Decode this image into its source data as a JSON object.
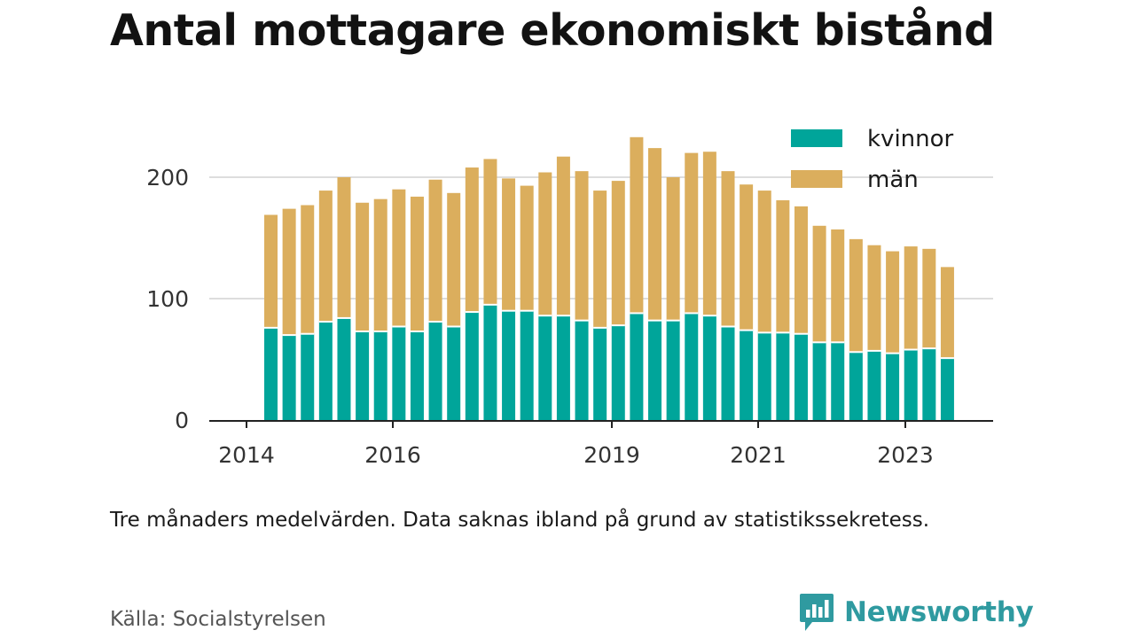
{
  "title": "Antal mottagare ekonomiskt bistånd",
  "note": "Tre månaders medelvärden. Data saknas ibland på grund av statistikssekretess.",
  "source": "Källa: Socialstyrelsen",
  "brand": {
    "name": "Newsworthy",
    "icon": "newsworthy-logo-icon"
  },
  "colors": {
    "kvinnor": "#00a59a",
    "man": "#dbae5d",
    "grid": "#dddddd",
    "axis": "#222222",
    "text": "#333333"
  },
  "chart_data": {
    "type": "bar",
    "stacked": true,
    "x_ticks": [
      "2014",
      "2016",
      "2019",
      "2021",
      "2023"
    ],
    "y_ticks": [
      0,
      100,
      200
    ],
    "ylim": [
      0,
      240
    ],
    "legend": {
      "position": "top-right",
      "entries": [
        "kvinnor",
        "män"
      ]
    },
    "grid": true,
    "series": [
      {
        "name": "kvinnor",
        "values": [
          76,
          70,
          71,
          81,
          84,
          73,
          73,
          77,
          73,
          81,
          77,
          89,
          95,
          90,
          90,
          86,
          86,
          82,
          76,
          78,
          88,
          82,
          82,
          88,
          86,
          77,
          74,
          72,
          72,
          71,
          64,
          64,
          56,
          57,
          55,
          58,
          59,
          51
        ]
      },
      {
        "name": "män",
        "values": [
          93,
          104,
          106,
          108,
          116,
          106,
          109,
          113,
          111,
          117,
          110,
          119,
          120,
          109,
          103,
          118,
          131,
          123,
          113,
          119,
          145,
          142,
          118,
          132,
          135,
          128,
          120,
          117,
          109,
          105,
          96,
          93,
          93,
          87,
          84,
          85,
          82,
          75
        ]
      }
    ]
  }
}
